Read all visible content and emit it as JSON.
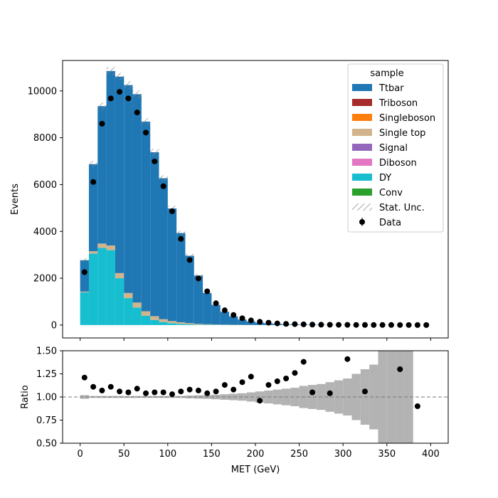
{
  "chart_data": [
    {
      "type": "bar",
      "subtype": "stacked-histogram",
      "title": "",
      "xlabel": "",
      "ylabel": "Events",
      "xlim": [
        -20,
        420
      ],
      "ylim": [
        -550,
        11300
      ],
      "x_ticks": [
        0,
        50,
        100,
        150,
        200,
        250,
        300,
        350,
        400
      ],
      "y_ticks": [
        0,
        2000,
        4000,
        6000,
        8000,
        10000
      ],
      "y_tick_labels": [
        "0",
        "2000",
        "4000",
        "6000",
        "8000",
        "10000"
      ],
      "bin_edges": [
        0,
        10,
        20,
        30,
        40,
        50,
        60,
        70,
        80,
        90,
        100,
        110,
        120,
        130,
        140,
        150,
        160,
        170,
        180,
        190,
        200,
        210,
        220,
        230,
        240,
        250,
        260,
        270,
        280,
        290,
        300,
        310,
        320,
        330,
        340,
        350,
        360,
        370,
        380,
        390,
        400
      ],
      "legend": {
        "title": "sample",
        "position": "top-right",
        "entries": [
          {
            "label": "Ttbar",
            "color": "#1f77b4",
            "kind": "patch"
          },
          {
            "label": "Triboson",
            "color": "#a62b2b",
            "kind": "patch"
          },
          {
            "label": "Singleboson",
            "color": "#ff7f0e",
            "kind": "patch"
          },
          {
            "label": "Single top",
            "color": "#d2b48c",
            "kind": "patch"
          },
          {
            "label": "Signal",
            "color": "#9467bd",
            "kind": "patch"
          },
          {
            "label": "Diboson",
            "color": "#e377c2",
            "kind": "patch"
          },
          {
            "label": "DY",
            "color": "#17becf",
            "kind": "patch"
          },
          {
            "label": "Conv",
            "color": "#2ca02c",
            "kind": "patch"
          },
          {
            "label": "Stat. Unc.",
            "color": "#888888",
            "kind": "hatch"
          },
          {
            "label": "Data",
            "color": "#000000",
            "kind": "marker"
          }
        ]
      },
      "series": [
        {
          "name": "DY",
          "color": "#17becf",
          "values": [
            1400,
            3050,
            3300,
            3200,
            2000,
            1150,
            750,
            400,
            220,
            130,
            80,
            50,
            30,
            20,
            12,
            8,
            5,
            3,
            2,
            1,
            1,
            0,
            0,
            0,
            0,
            0,
            0,
            0,
            0,
            0,
            0,
            0,
            0,
            0,
            0,
            0,
            0,
            0,
            0,
            0
          ]
        },
        {
          "name": "Single top",
          "color": "#d2b48c",
          "values": [
            30,
            100,
            180,
            200,
            220,
            220,
            210,
            190,
            160,
            120,
            90,
            70,
            50,
            35,
            25,
            15,
            10,
            8,
            5,
            3,
            2,
            1,
            1,
            0,
            0,
            0,
            0,
            0,
            0,
            0,
            0,
            0,
            0,
            0,
            0,
            0,
            0,
            0,
            0,
            0
          ]
        },
        {
          "name": "Ttbar",
          "color": "#1f77b4",
          "values": [
            1340,
            3720,
            5870,
            7450,
            8390,
            8880,
            8900,
            8100,
            7000,
            6020,
            4810,
            3810,
            2880,
            2060,
            1330,
            840,
            550,
            360,
            230,
            150,
            100,
            70,
            50,
            35,
            25,
            18,
            12,
            8,
            6,
            4,
            3,
            2,
            2,
            1,
            1,
            1,
            1,
            0,
            0,
            0
          ]
        }
      ],
      "data": {
        "name": "Data",
        "values": [
          2260,
          6110,
          8600,
          9680,
          9960,
          9680,
          9080,
          8220,
          6990,
          5930,
          4860,
          3680,
          2780,
          1990,
          1440,
          930,
          630,
          430,
          290,
          200,
          140,
          100,
          70,
          50,
          40,
          30,
          20,
          15,
          12,
          10,
          8,
          6,
          5,
          4,
          3,
          3,
          2,
          2,
          1,
          1
        ]
      }
    },
    {
      "type": "scatter",
      "subtype": "ratio",
      "title": "",
      "xlabel": "MET (GeV)",
      "ylabel": "Ratio",
      "xlim": [
        -20,
        420
      ],
      "ylim": [
        0.5,
        1.5
      ],
      "x_ticks": [
        0,
        50,
        100,
        150,
        200,
        250,
        300,
        350,
        400
      ],
      "y_ticks": [
        0.5,
        0.75,
        1.0,
        1.25,
        1.5
      ],
      "y_tick_labels": [
        "0.50",
        "0.75",
        "1.00",
        "1.25",
        "1.50"
      ],
      "reference_line": 1.0,
      "uncertainty_band": {
        "color": "#b3b3b3",
        "half_widths": [
          0.02,
          0.01,
          0.01,
          0.01,
          0.01,
          0.01,
          0.01,
          0.01,
          0.01,
          0.01,
          0.01,
          0.01,
          0.015,
          0.018,
          0.02,
          0.025,
          0.03,
          0.035,
          0.04,
          0.05,
          0.06,
          0.07,
          0.08,
          0.09,
          0.1,
          0.12,
          0.13,
          0.14,
          0.16,
          0.18,
          0.2,
          0.25,
          0.3,
          0.35,
          0.5,
          0.6,
          0.7,
          0.8,
          0,
          0
        ]
      },
      "points": [
        {
          "x": 5,
          "y": 1.21
        },
        {
          "x": 15,
          "y": 1.11
        },
        {
          "x": 25,
          "y": 1.07
        },
        {
          "x": 35,
          "y": 1.11
        },
        {
          "x": 45,
          "y": 1.06
        },
        {
          "x": 55,
          "y": 1.05
        },
        {
          "x": 65,
          "y": 1.09
        },
        {
          "x": 75,
          "y": 1.04
        },
        {
          "x": 85,
          "y": 1.05
        },
        {
          "x": 95,
          "y": 1.05
        },
        {
          "x": 105,
          "y": 1.03
        },
        {
          "x": 115,
          "y": 1.06
        },
        {
          "x": 125,
          "y": 1.08
        },
        {
          "x": 135,
          "y": 1.07
        },
        {
          "x": 145,
          "y": 1.04
        },
        {
          "x": 155,
          "y": 1.06
        },
        {
          "x": 165,
          "y": 1.13
        },
        {
          "x": 175,
          "y": 1.08
        },
        {
          "x": 185,
          "y": 1.16
        },
        {
          "x": 195,
          "y": 1.22
        },
        {
          "x": 205,
          "y": 0.96
        },
        {
          "x": 215,
          "y": 1.13
        },
        {
          "x": 225,
          "y": 1.17
        },
        {
          "x": 235,
          "y": 1.2
        },
        {
          "x": 245,
          "y": 1.26
        },
        {
          "x": 255,
          "y": 1.38
        },
        {
          "x": 265,
          "y": 1.05
        },
        {
          "x": 285,
          "y": 1.04
        },
        {
          "x": 305,
          "y": 1.41
        },
        {
          "x": 325,
          "y": 1.06
        },
        {
          "x": 365,
          "y": 1.3
        },
        {
          "x": 385,
          "y": 0.9
        }
      ]
    }
  ]
}
